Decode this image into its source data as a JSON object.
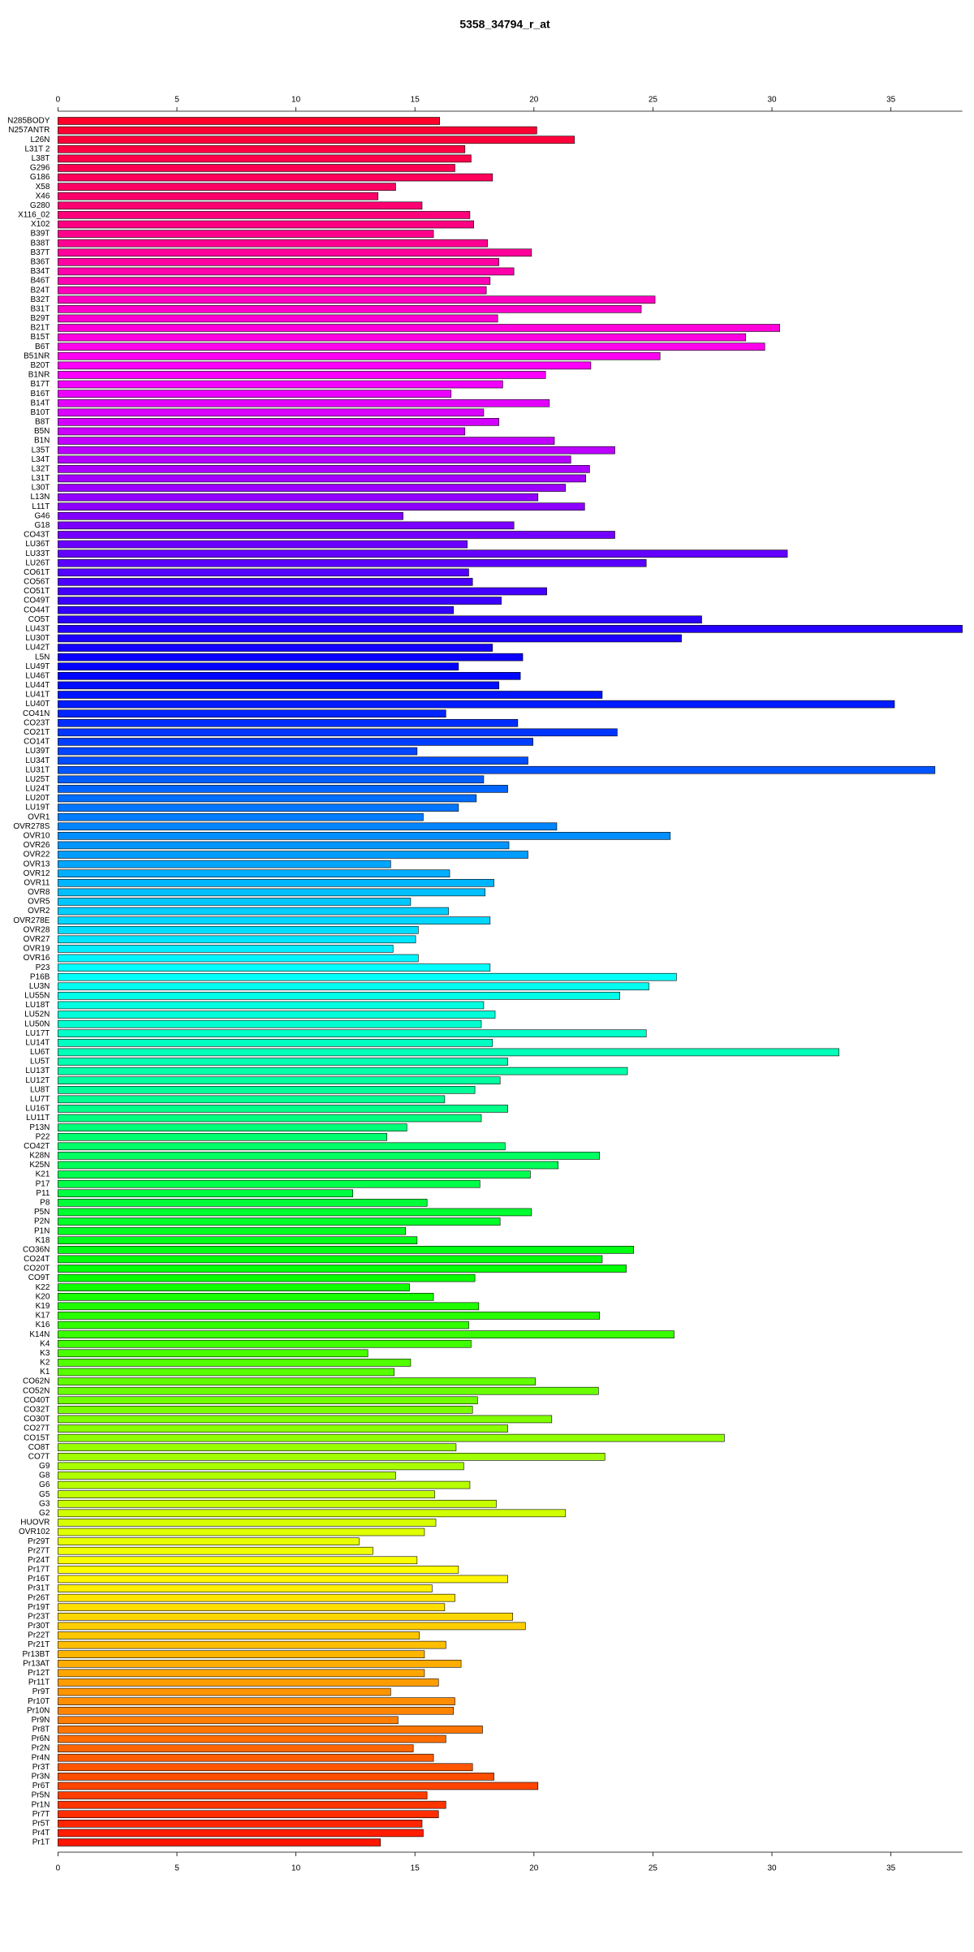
{
  "chart_data": {
    "type": "barh",
    "title": "5358_34794_r_at",
    "categories": [
      "N285BODY",
      "N257ANTR",
      "L26N",
      "L31T 2",
      "L38T",
      "G296",
      "G186",
      "X58",
      "X46",
      "G280",
      "X116_02",
      "X102",
      "B39T",
      "B38T",
      "B37T",
      "B36T",
      "B34T",
      "B46T",
      "B24T",
      "B32T",
      "B31T",
      "B29T",
      "B21T",
      "B15T",
      "B6T",
      "B51NR",
      "B20T",
      "B1NR",
      "B17T",
      "B16T",
      "B14T",
      "B10T",
      "B8T",
      "B5N",
      "B1N",
      "L35T",
      "L34T",
      "L32T",
      "L31T",
      "L30T",
      "L13N",
      "L11T",
      "G46",
      "G18",
      "CO43T",
      "LU36T",
      "LU33T",
      "LU26T",
      "CO61T",
      "CO56T",
      "CO51T",
      "CO49T",
      "CO44T",
      "CO5T",
      "LU43T",
      "LU30T",
      "LU42T",
      "L5N",
      "LU49T",
      "LU46T",
      "LU44T",
      "LU41T",
      "LU40T",
      "CO41N",
      "CO23T",
      "CO21T",
      "CO14T",
      "LU39T",
      "LU34T",
      "LU31T",
      "LU25T",
      "LU24T",
      "LU20T",
      "LU19T",
      "OVR1",
      "OVR278S",
      "OVR10",
      "OVR26",
      "OVR22",
      "OVR13",
      "OVR12",
      "OVR11",
      "OVR8",
      "OVR5",
      "OVR2",
      "OVR278E",
      "OVR28",
      "OVR27",
      "OVR19",
      "OVR16",
      "P23",
      "P16B",
      "LU3N",
      "LU55N",
      "LU18T",
      "LU52N",
      "LU50N",
      "LU17T",
      "LU14T",
      "LU6T",
      "LU5T",
      "LU13T",
      "LU12T",
      "LU8T",
      "LU7T",
      "LU16T",
      "LU11T",
      "P13N",
      "P22",
      "CO42T",
      "K28N",
      "K25N",
      "K21",
      "P17",
      "P11",
      "P8",
      "P5N",
      "P2N",
      "P1N",
      "K18",
      "CO36N",
      "CO24T",
      "CO20T",
      "CO9T",
      "K22",
      "K20",
      "K19",
      "K17",
      "K16",
      "K14N",
      "K4",
      "K3",
      "K2",
      "K1",
      "CO62N",
      "CO52N",
      "CO40T",
      "CO32T",
      "CO30T",
      "CO27T",
      "CO15T",
      "CO8T",
      "CO7T",
      "G9",
      "G8",
      "G6",
      "G5",
      "G3",
      "G2",
      "HUOVR",
      "OVR102",
      "Pr29T",
      "Pr27T",
      "Pr24T",
      "Pr17T",
      "Pr16T",
      "Pr31T",
      "Pr26T",
      "Pr19T",
      "Pr23T",
      "Pr30T",
      "Pr22T",
      "Pr21T",
      "Pr13BT",
      "Pr13AT",
      "Pr12T",
      "Pr11T",
      "Pr9T",
      "Pr10T",
      "Pr10N",
      "Pr9N",
      "Pr8T",
      "Pr6N",
      "Pr2N",
      "Pr4N",
      "Pr3T",
      "Pr3N",
      "Pr6T",
      "Pr5N",
      "Pr1N",
      "Pr7T",
      "Pr5T",
      "Pr4T",
      "Pr1T"
    ],
    "values": [
      16.04,
      20.12,
      21.7,
      17.1,
      17.36,
      16.68,
      18.26,
      14.19,
      13.45,
      15.3,
      17.31,
      17.47,
      15.78,
      18.05,
      19.9,
      18.53,
      19.16,
      18.16,
      18.0,
      25.09,
      24.51,
      18.48,
      30.33,
      28.9,
      29.7,
      25.3,
      22.39,
      20.49,
      18.69,
      16.52,
      20.65,
      17.89,
      18.53,
      17.1,
      20.86,
      23.4,
      21.55,
      22.34,
      22.18,
      21.33,
      20.17,
      22.13,
      14.5,
      19.16,
      23.4,
      17.2,
      30.65,
      24.72,
      17.26,
      17.42,
      20.54,
      18.63,
      16.62,
      27.05,
      38.0,
      26.2,
      18.26,
      19.53,
      16.83,
      19.43,
      18.53,
      22.87,
      35.15,
      16.3,
      19.32,
      23.5,
      19.96,
      15.09,
      19.75,
      36.85,
      17.89,
      18.9,
      17.58,
      16.83,
      15.35,
      20.96,
      25.73,
      18.95,
      19.75,
      13.98,
      16.46,
      18.32,
      17.95,
      14.82,
      16.41,
      18.16,
      15.14,
      15.03,
      14.08,
      15.14,
      18.16,
      25.99,
      24.83,
      23.61,
      17.89,
      18.37,
      17.79,
      24.72,
      18.26,
      32.82,
      18.9,
      23.93,
      18.58,
      17.52,
      16.25,
      18.9,
      17.79,
      14.66,
      13.82,
      18.79,
      22.76,
      21.02,
      19.85,
      17.73,
      12.39,
      15.51,
      19.9,
      18.58,
      14.61,
      15.09,
      24.19,
      22.87,
      23.88,
      17.52,
      14.77,
      15.78,
      17.68,
      22.76,
      17.26,
      25.89,
      17.36,
      13.02,
      14.82,
      14.13,
      20.06,
      22.71,
      17.63,
      17.42,
      20.75,
      18.9,
      28.0,
      16.73,
      22.98,
      17.05,
      14.19,
      17.31,
      15.83,
      18.42,
      21.33,
      15.88,
      15.4,
      12.65,
      13.23,
      15.09,
      16.83,
      18.9,
      15.72,
      16.68,
      16.25,
      19.11,
      19.64,
      15.19,
      16.3,
      15.4,
      16.94,
      15.4,
      15.99,
      13.98,
      16.68,
      16.62,
      14.29,
      17.84,
      16.3,
      14.93,
      15.78,
      17.42,
      18.32,
      20.17,
      15.51,
      16.3,
      15.99,
      15.3,
      15.35,
      13.55
    ],
    "color_hue_range": [
      350,
      5
    ],
    "xlim": [
      0,
      38
    ],
    "xticks": [
      0,
      5,
      10,
      15,
      20,
      25,
      30,
      35
    ]
  }
}
